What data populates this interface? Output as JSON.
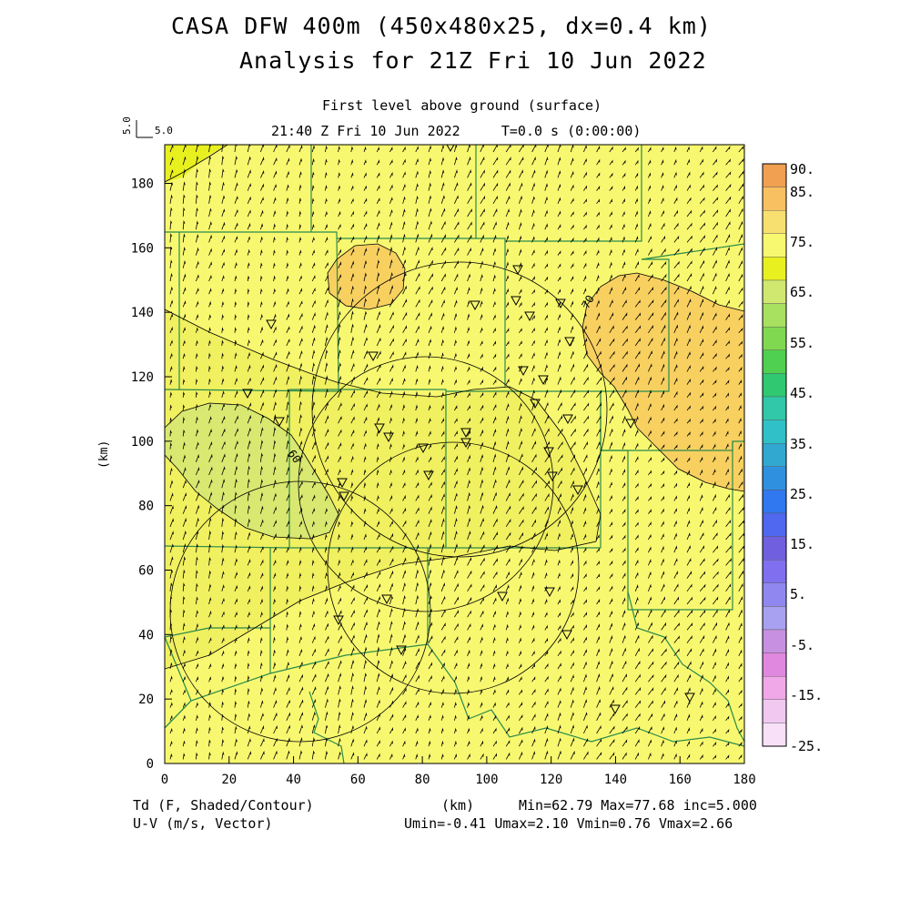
{
  "header": {
    "title": "CASA DFW 400m (450x480x25, dx=0.4 km)",
    "subtitle": "Analysis for 21Z Fri 10 Jun 2022",
    "level": "First level above ground (surface)",
    "time": "21:40 Z Fri 10 Jun 2022     T=0.0 s (0:00:00)"
  },
  "ref_vector": {
    "label_y": "5.0",
    "label_x": "5.0"
  },
  "axes": {
    "xlabel": "(km)",
    "ylabel": "(km)",
    "x_ticks": [
      0,
      20,
      40,
      60,
      80,
      100,
      120,
      140,
      160,
      180
    ],
    "y_ticks": [
      0,
      20,
      40,
      60,
      80,
      100,
      120,
      140,
      160,
      180
    ],
    "xlim": [
      0,
      180
    ],
    "ylim": [
      0,
      192
    ]
  },
  "colorbar": {
    "labels": [
      "90.",
      "85.",
      "75.",
      "65.",
      "55.",
      "45.",
      "35.",
      "25.",
      "15.",
      "5.",
      "-5.",
      "-15.",
      "-25."
    ],
    "colors": [
      "#f0a050",
      "#f8c060",
      "#f8e070",
      "#f8f870",
      "#e8f020",
      "#d0e870",
      "#a8e060",
      "#80d850",
      "#50d050",
      "#30c870",
      "#30c8a8",
      "#30c0c8",
      "#30a8d0",
      "#3090e0",
      "#3078f0",
      "#5068f0",
      "#7060e0",
      "#8070f0",
      "#9088f0",
      "#a8a0f0",
      "#c890e0",
      "#e088e0",
      "#f0a8e8",
      "#f0c8f0",
      "#f8e0f8"
    ]
  },
  "contours": {
    "label_60": "60",
    "label_70": "70"
  },
  "footer": {
    "left1": "Td (F, Shaded/Contour)",
    "left2": "U-V (m/s, Vector)",
    "xunit": "(km)",
    "stats1": "Min=62.79 Max=77.68 inc=5.000",
    "stats2": "Umin=-0.41 Umax=2.10 Vmin=0.76 Vmax=2.66"
  }
}
